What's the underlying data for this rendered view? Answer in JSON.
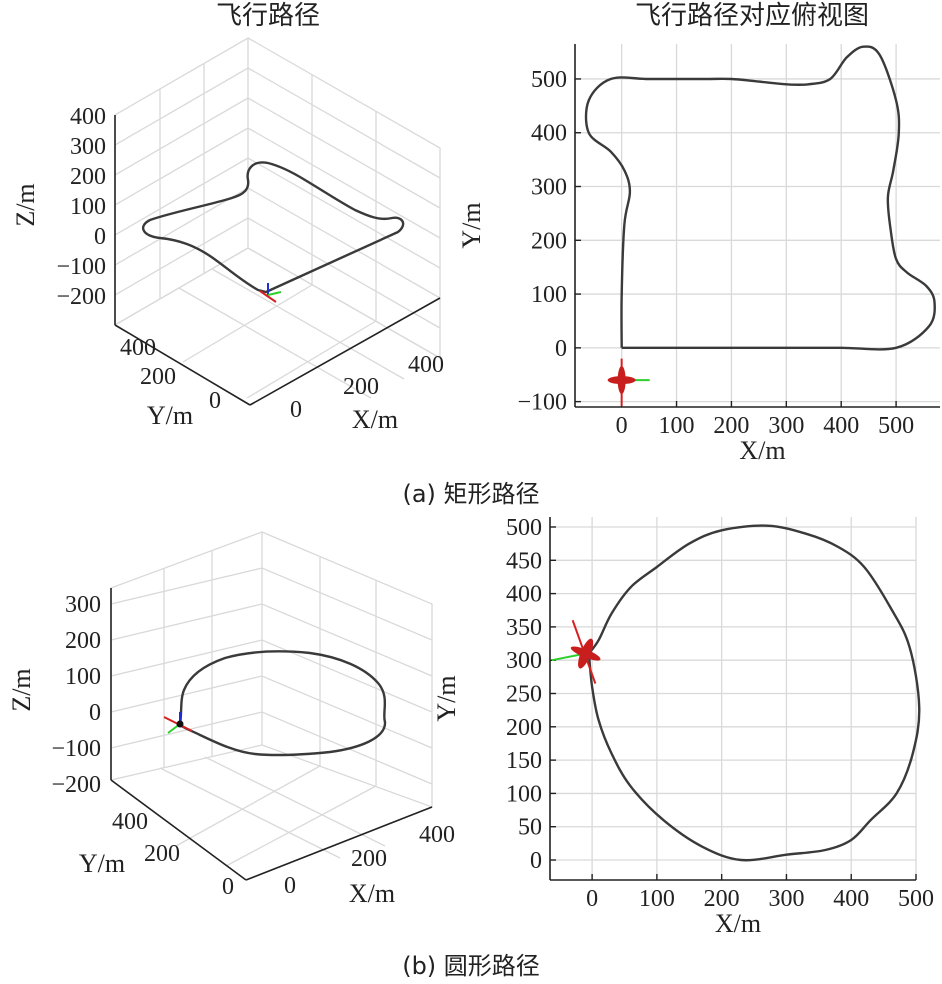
{
  "figure": {
    "captions": [
      "(a) 矩形路径",
      "(b) 圆形路径"
    ]
  },
  "chart_data": [
    {
      "type": "line",
      "subplot": "a-3d",
      "title": "飞行路径",
      "xlabel": "X/m",
      "ylabel": "Y/m",
      "zlabel": "Z/m",
      "xticks": [
        0,
        200,
        400
      ],
      "yticks": [
        0,
        200,
        400
      ],
      "zticks": [
        400,
        300,
        200,
        100,
        0,
        -100,
        -200
      ],
      "zticks_labels": [
        "400",
        "300",
        "200",
        "100",
        "0",
        "−100",
        "−200"
      ],
      "xlim": [
        0,
        500
      ],
      "ylim": [
        0,
        500
      ],
      "zlim": [
        -200,
        400
      ],
      "grid": true
    },
    {
      "type": "line",
      "subplot": "a-top",
      "title": "飞行路径对应俯视图",
      "xlabel": "X/m",
      "ylabel": "Y/m",
      "xticks": [
        0,
        100,
        200,
        300,
        400,
        500
      ],
      "xticks_labels": [
        "0",
        "100",
        "200",
        "300",
        "400",
        "500"
      ],
      "yticks": [
        -100,
        0,
        100,
        200,
        300,
        400,
        500
      ],
      "yticks_labels": [
        "−100",
        "0",
        "100",
        "200",
        "300",
        "400",
        "500"
      ],
      "xlim": [
        -85,
        580
      ],
      "ylim": [
        -110,
        565
      ],
      "grid": true,
      "x": [
        0,
        100,
        200,
        300,
        400,
        500,
        560,
        570,
        555,
        520,
        500,
        490,
        485,
        495,
        505,
        500,
        470,
        440,
        410,
        380,
        340,
        300,
        250,
        200,
        150,
        50,
        -20,
        -60,
        -60,
        -20,
        5,
        15,
        5,
        0,
        0
      ],
      "y": [
        0,
        0,
        0,
        0,
        0,
        0,
        40,
        85,
        115,
        140,
        165,
        220,
        280,
        330,
        400,
        460,
        545,
        560,
        540,
        500,
        490,
        490,
        495,
        500,
        500,
        500,
        500,
        460,
        400,
        365,
        330,
        290,
        230,
        100,
        0
      ]
    },
    {
      "type": "line",
      "subplot": "b-3d",
      "title": "",
      "xlabel": "X/m",
      "ylabel": "Y/m",
      "zlabel": "Z/m",
      "xticks": [
        0,
        200,
        400
      ],
      "yticks": [
        0,
        200,
        400
      ],
      "zticks": [
        300,
        200,
        100,
        0,
        -100,
        -200
      ],
      "zticks_labels": [
        "300",
        "200",
        "100",
        "0",
        "−100",
        "−200"
      ],
      "xlim": [
        0,
        500
      ],
      "ylim": [
        0,
        500
      ],
      "zlim": [
        -200,
        300
      ],
      "grid": true
    },
    {
      "type": "line",
      "subplot": "b-top",
      "title": "",
      "xlabel": "X/m",
      "ylabel": "Y/m",
      "xticks": [
        0,
        100,
        200,
        300,
        400,
        500
      ],
      "xticks_labels": [
        "0",
        "100",
        "200",
        "300",
        "400",
        "500"
      ],
      "yticks": [
        0,
        50,
        100,
        150,
        200,
        250,
        300,
        350,
        400,
        450,
        500
      ],
      "yticks_labels": [
        "0",
        "50",
        "100",
        "150",
        "200",
        "250",
        "300",
        "350",
        "400",
        "450",
        "500"
      ],
      "xlim": [
        -65,
        500
      ],
      "ylim": [
        -30,
        515
      ],
      "grid": true,
      "x": [
        -5,
        10,
        30,
        60,
        100,
        150,
        200,
        270,
        330,
        380,
        420,
        460,
        490,
        505,
        495,
        470,
        430,
        400,
        360,
        300,
        230,
        170,
        110,
        60,
        30,
        10,
        0,
        -5
      ],
      "y": [
        310,
        330,
        370,
        410,
        440,
        475,
        495,
        502,
        490,
        470,
        440,
        380,
        320,
        230,
        160,
        100,
        60,
        30,
        15,
        8,
        0,
        20,
        60,
        110,
        160,
        210,
        260,
        310
      ]
    }
  ]
}
